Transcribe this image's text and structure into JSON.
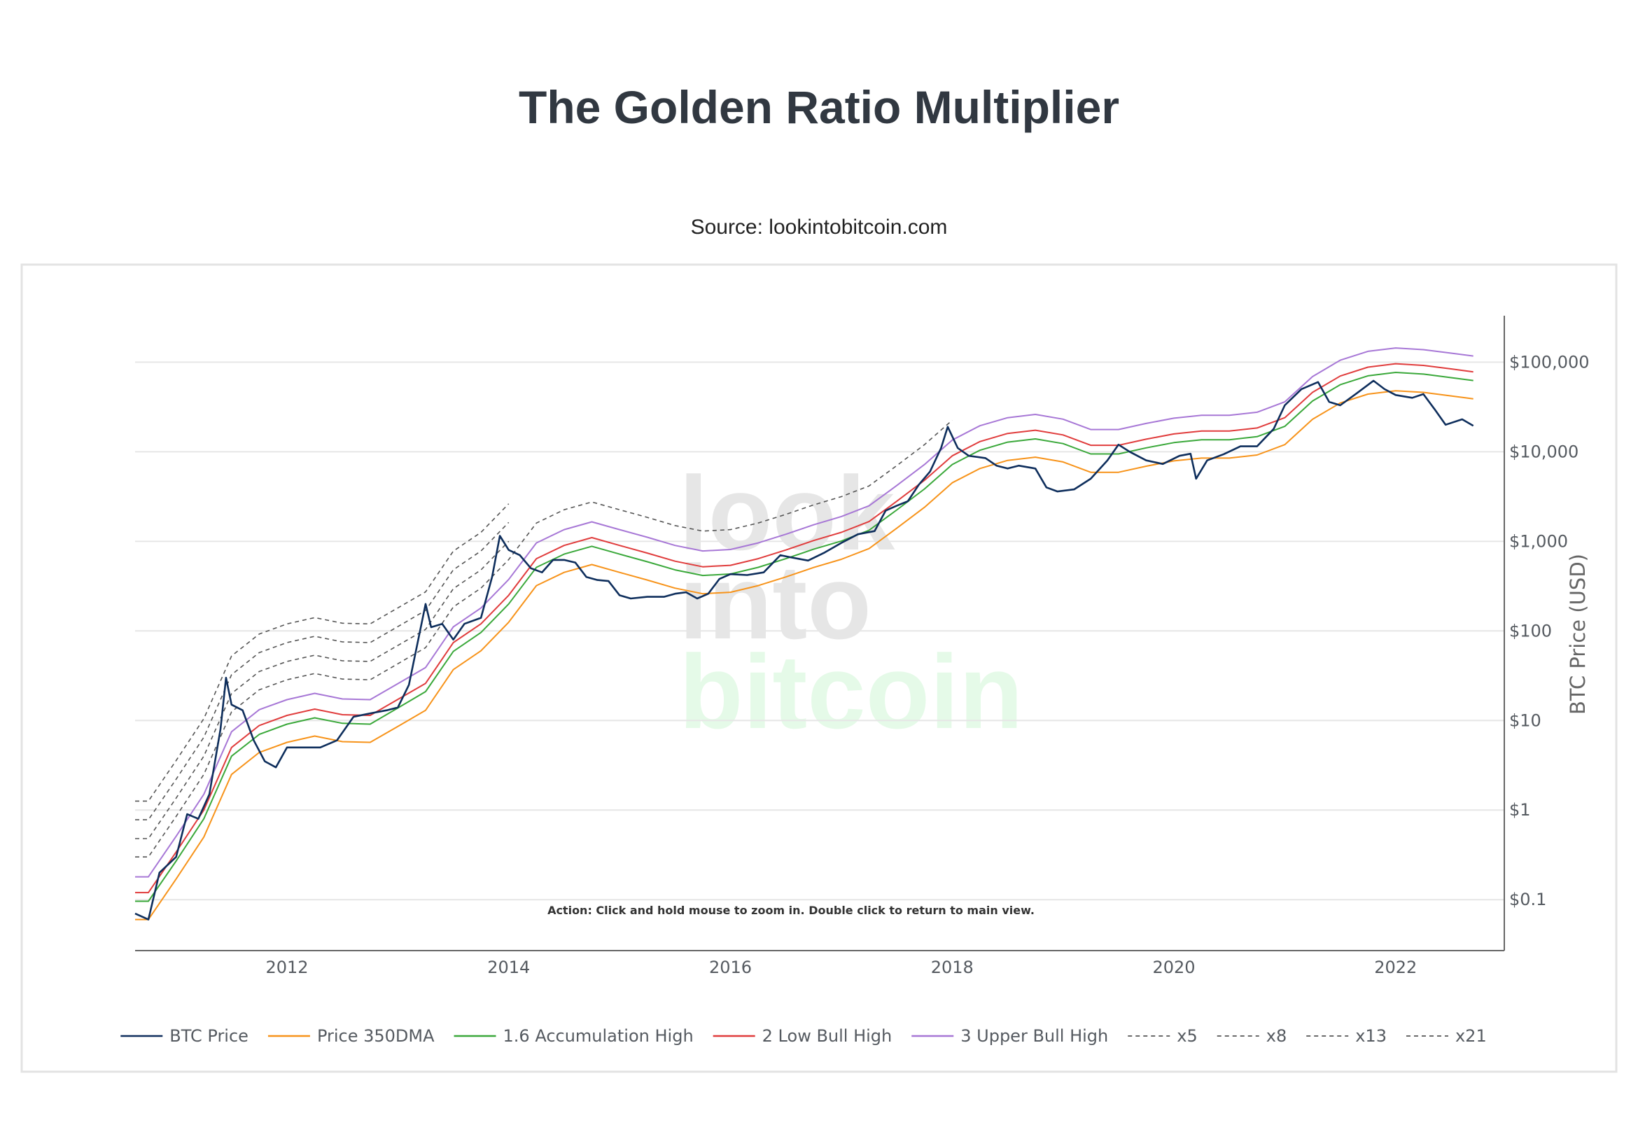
{
  "chart_data": {
    "type": "line",
    "title": "The Golden Ratio Multiplier",
    "subtitle": "Source: lookintobitcoin.com",
    "watermark": [
      "look",
      "into",
      "bitcoin"
    ],
    "annotation": "Action: Click and hold mouse to zoom in.  Double click to return to main view.",
    "y_label": "BTC Price (USD)",
    "log_y": true,
    "grid": true,
    "y_axis_side": "right",
    "legend": "bottom",
    "xlim": [
      2010.63,
      2022.98
    ],
    "ylim": [
      0.027,
      330000
    ],
    "xticks": [
      2012,
      2014,
      2016,
      2018,
      2020,
      2022
    ],
    "yticks": [
      {
        "value": 0.1,
        "label": "$0.1"
      },
      {
        "value": 1,
        "label": "$1"
      },
      {
        "value": 10,
        "label": "$10"
      },
      {
        "value": 100,
        "label": "$100"
      },
      {
        "value": 1000,
        "label": "$1,000"
      },
      {
        "value": 10000,
        "label": "$10,000"
      },
      {
        "value": 100000,
        "label": "$100,000"
      }
    ],
    "x": [
      2010.63,
      2010.75,
      2011,
      2011.25,
      2011.5,
      2011.75,
      2012,
      2012.25,
      2012.5,
      2012.75,
      2013,
      2013.25,
      2013.5,
      2013.75,
      2014,
      2014.25,
      2014.5,
      2014.75,
      2015,
      2015.25,
      2015.5,
      2015.75,
      2016,
      2016.25,
      2016.5,
      2016.75,
      2017,
      2017.25,
      2017.5,
      2017.75,
      2018,
      2018.25,
      2018.5,
      2018.75,
      2019,
      2019.25,
      2019.5,
      2019.75,
      2020,
      2020.25,
      2020.5,
      2020.75,
      2021,
      2021.25,
      2021.5,
      2021.75,
      2022,
      2022.25,
      2022.5,
      2022.7
    ],
    "series": [
      {
        "name": "BTC Price",
        "color": "#0e2e5c",
        "x": [
          2010.63,
          2010.75,
          2010.85,
          2011.0,
          2011.1,
          2011.2,
          2011.3,
          2011.4,
          2011.45,
          2011.5,
          2011.6,
          2011.7,
          2011.8,
          2011.9,
          2012.0,
          2012.15,
          2012.3,
          2012.45,
          2012.6,
          2012.75,
          2012.9,
          2013.0,
          2013.1,
          2013.25,
          2013.3,
          2013.4,
          2013.5,
          2013.6,
          2013.75,
          2013.85,
          2013.92,
          2014.0,
          2014.1,
          2014.2,
          2014.3,
          2014.4,
          2014.5,
          2014.6,
          2014.7,
          2014.8,
          2014.9,
          2015.0,
          2015.1,
          2015.25,
          2015.4,
          2015.5,
          2015.6,
          2015.7,
          2015.8,
          2015.9,
          2016.0,
          2016.15,
          2016.3,
          2016.45,
          2016.55,
          2016.7,
          2016.85,
          2017.0,
          2017.15,
          2017.3,
          2017.4,
          2017.5,
          2017.6,
          2017.7,
          2017.8,
          2017.9,
          2017.96,
          2018.05,
          2018.15,
          2018.3,
          2018.4,
          2018.5,
          2018.6,
          2018.75,
          2018.85,
          2018.95,
          2019.1,
          2019.25,
          2019.4,
          2019.5,
          2019.6,
          2019.75,
          2019.9,
          2020.05,
          2020.15,
          2020.2,
          2020.3,
          2020.45,
          2020.6,
          2020.75,
          2020.9,
          2021.0,
          2021.15,
          2021.3,
          2021.4,
          2021.5,
          2021.65,
          2021.8,
          2021.9,
          2022.0,
          2022.15,
          2022.25,
          2022.35,
          2022.45,
          2022.6,
          2022.7
        ],
        "values": [
          0.07,
          0.06,
          0.2,
          0.3,
          0.9,
          0.8,
          1.5,
          8,
          30,
          15,
          13,
          6,
          3.5,
          3,
          5,
          5,
          5,
          6,
          11,
          12,
          13,
          14,
          25,
          200,
          110,
          120,
          80,
          120,
          140,
          400,
          1150,
          800,
          700,
          500,
          450,
          620,
          620,
          580,
          400,
          370,
          360,
          250,
          230,
          240,
          240,
          260,
          270,
          230,
          260,
          380,
          430,
          420,
          450,
          700,
          660,
          610,
          750,
          960,
          1200,
          1300,
          2200,
          2500,
          2800,
          4300,
          6000,
          11000,
          19000,
          11000,
          9000,
          8500,
          7000,
          6500,
          7000,
          6500,
          4000,
          3600,
          3800,
          5000,
          8000,
          12000,
          10000,
          8000,
          7300,
          9000,
          9500,
          5000,
          8000,
          9400,
          11500,
          11500,
          18000,
          33000,
          50000,
          60000,
          36000,
          33000,
          45000,
          62000,
          50000,
          43000,
          40000,
          44000,
          30000,
          20000,
          23000,
          19500
        ]
      },
      {
        "name": "Price 350DMA",
        "color": "#f7931a",
        "values": [
          0.06,
          0.06,
          0.17,
          0.5,
          2.5,
          4.4,
          5.7,
          6.7,
          5.8,
          5.7,
          8.6,
          13,
          37,
          60,
          125,
          320,
          450,
          550,
          450,
          370,
          300,
          260,
          270,
          320,
          400,
          510,
          630,
          830,
          1400,
          2400,
          4500,
          6500,
          8000,
          8700,
          7700,
          5900,
          5900,
          6900,
          7900,
          8500,
          8500,
          9200,
          12000,
          23000,
          35000,
          44000,
          48000,
          46000,
          42000,
          39000
        ]
      },
      {
        "name": "1.6 Accumulation High",
        "color": "#3aa83a",
        "values": [
          0.096,
          0.096,
          0.27,
          0.8,
          4,
          7,
          9.1,
          10.7,
          9.3,
          9.1,
          13.8,
          21,
          59,
          96,
          200,
          512,
          720,
          880,
          720,
          592,
          480,
          416,
          432,
          512,
          640,
          816,
          1008,
          1328,
          2240,
          3840,
          7200,
          10400,
          12800,
          13920,
          12320,
          9440,
          9440,
          11040,
          12640,
          13600,
          13600,
          14720,
          19200,
          36800,
          56000,
          70400,
          76800,
          73600,
          67200,
          62400
        ]
      },
      {
        "name": "2 Low Bull High",
        "color": "#e03c3c",
        "values": [
          0.12,
          0.12,
          0.34,
          1,
          5,
          8.8,
          11.4,
          13.4,
          11.6,
          11.4,
          17.2,
          26,
          74,
          120,
          250,
          640,
          900,
          1100,
          900,
          740,
          600,
          520,
          540,
          640,
          800,
          1020,
          1260,
          1660,
          2800,
          4800,
          9000,
          13000,
          16000,
          17400,
          15400,
          11800,
          11800,
          13800,
          15800,
          17000,
          17000,
          18400,
          24000,
          46000,
          70000,
          88000,
          96000,
          92000,
          84000,
          78000
        ]
      },
      {
        "name": "3 Upper Bull High",
        "color": "#a777d6",
        "values": [
          0.18,
          0.18,
          0.51,
          1.5,
          7.5,
          13.2,
          17.1,
          20.1,
          17.4,
          17.1,
          25.8,
          39,
          111,
          180,
          375,
          960,
          1350,
          1650,
          1350,
          1110,
          900,
          780,
          810,
          960,
          1200,
          1530,
          1890,
          2490,
          4200,
          7200,
          13500,
          19500,
          24000,
          26100,
          23100,
          17700,
          17700,
          20700,
          23700,
          25500,
          25500,
          27600,
          36000,
          69000,
          105000,
          132000,
          144000,
          138000,
          126000,
          117000
        ]
      },
      {
        "name": "x5",
        "color": "#555555",
        "dash": true,
        "values": [
          0.3,
          0.3,
          0.85,
          2.5,
          12.5,
          22,
          28.5,
          33.5,
          29,
          28.5,
          43,
          65,
          185,
          300,
          625,
          1600,
          2250,
          2750,
          2250,
          1850,
          1500,
          1300,
          1350,
          1600,
          2000,
          2550,
          3150,
          4150,
          7000,
          12000,
          22500,
          null,
          null,
          null,
          null,
          null,
          null,
          null,
          null,
          null,
          null,
          null,
          null,
          null,
          null,
          null,
          null,
          null,
          null,
          null
        ]
      },
      {
        "name": "x8",
        "color": "#555555",
        "dash": true,
        "values": [
          0.48,
          0.48,
          1.36,
          4,
          20,
          35.2,
          45.6,
          53.6,
          46.4,
          45.6,
          68.8,
          104,
          296,
          480,
          1000,
          null,
          null,
          null,
          null,
          null,
          null,
          null,
          null,
          null,
          null,
          null,
          null,
          null,
          null,
          null,
          null,
          null,
          null,
          null,
          null,
          null,
          null,
          null,
          null,
          null,
          null,
          null,
          null,
          null,
          null,
          null,
          null,
          null,
          null,
          null
        ]
      },
      {
        "name": "x13",
        "color": "#555555",
        "dash": true,
        "values": [
          0.78,
          0.78,
          2.21,
          6.5,
          32.5,
          57.2,
          74.1,
          87.1,
          75.4,
          74.1,
          111.8,
          169,
          481,
          780,
          1625,
          null,
          null,
          null,
          null,
          null,
          null,
          null,
          null,
          null,
          null,
          null,
          null,
          null,
          null,
          null,
          null,
          null,
          null,
          null,
          null,
          null,
          null,
          null,
          null,
          null,
          null,
          null,
          null,
          null,
          null,
          null,
          null,
          null,
          null,
          null
        ]
      },
      {
        "name": "x21",
        "color": "#555555",
        "dash": true,
        "values": [
          1.26,
          1.26,
          3.57,
          10.5,
          52.5,
          92.4,
          119.7,
          140.7,
          121.8,
          119.7,
          180.6,
          273,
          777,
          1260,
          2625,
          null,
          null,
          null,
          null,
          null,
          null,
          null,
          null,
          null,
          null,
          null,
          null,
          null,
          null,
          null,
          null,
          null,
          null,
          null,
          null,
          null,
          null,
          null,
          null,
          null,
          null,
          null,
          null,
          null,
          null,
          null,
          null,
          null,
          null,
          null
        ]
      }
    ]
  }
}
